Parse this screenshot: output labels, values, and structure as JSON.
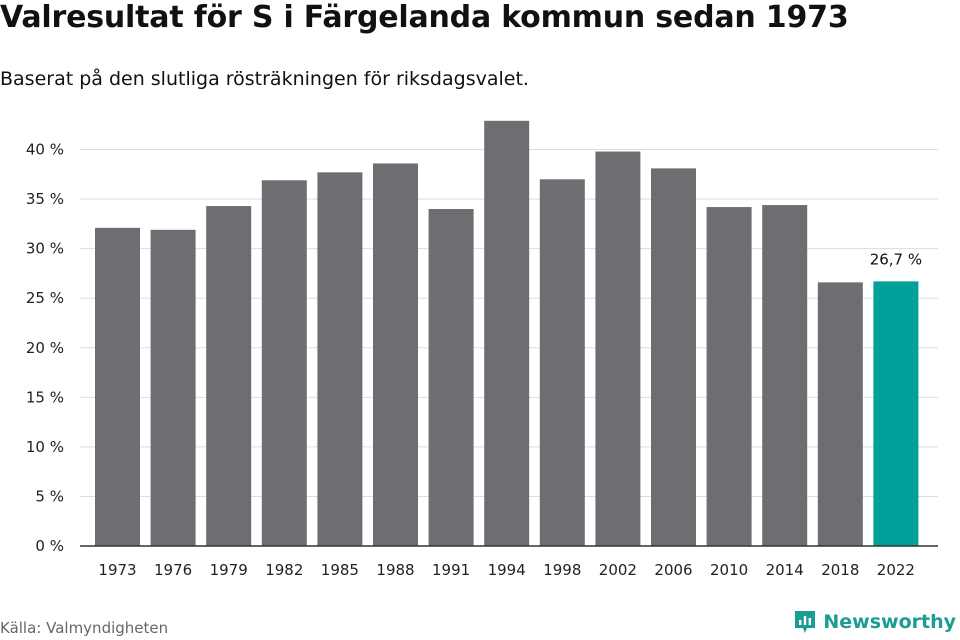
{
  "header": {
    "title": "Valresultat för S i Färgelanda kommun sedan 1973",
    "subtitle": "Baserat på den slutliga rösträkningen för riksdagsvalet."
  },
  "footer": {
    "source": "Källa: Valmyndigheten",
    "brand": "Newsworthy"
  },
  "colors": {
    "bar": "#6e6d72",
    "highlight": "#00a19a",
    "grid": "#dddddd",
    "axis": "#333333",
    "brand": "#1b9c95"
  },
  "chart_data": {
    "type": "bar",
    "categories": [
      "1973",
      "1976",
      "1979",
      "1982",
      "1985",
      "1988",
      "1991",
      "1994",
      "1998",
      "2002",
      "2006",
      "2010",
      "2014",
      "2018",
      "2022"
    ],
    "values": [
      32.1,
      31.9,
      34.3,
      36.9,
      37.7,
      38.6,
      34.0,
      42.9,
      37.0,
      39.8,
      38.1,
      34.2,
      34.4,
      26.6,
      26.7
    ],
    "highlight_index": 14,
    "highlight_label": "26,7 %",
    "ylim": [
      0,
      45
    ],
    "yticks": [
      0,
      5,
      10,
      15,
      20,
      25,
      30,
      35,
      40
    ],
    "ytick_labels": [
      "0 %",
      "5 %",
      "10 %",
      "15 %",
      "20 %",
      "25 %",
      "30 %",
      "35 %",
      "40 %"
    ],
    "grid": true,
    "xlabel": "",
    "ylabel": ""
  }
}
